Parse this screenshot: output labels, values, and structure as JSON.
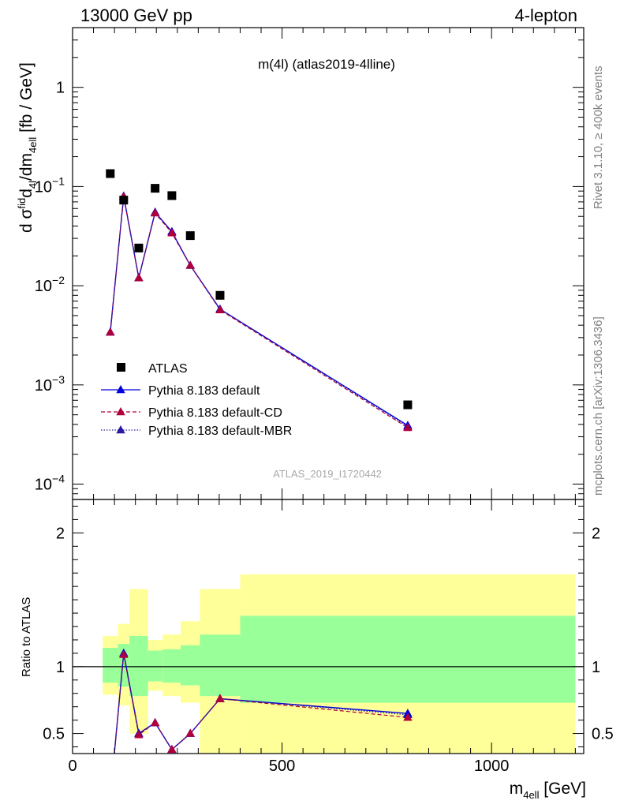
{
  "header": {
    "left": "13000 GeV pp",
    "right": "4-lepton"
  },
  "plot": {
    "title": "m(4l) (atlas2019-4lline)",
    "watermark": "ATLAS_2019_I1720442",
    "side_text_top": "Rivet 3.1.10, ≥ 400k events",
    "side_text_bottom": "mcplots.cern.ch [arXiv:1306.3436]"
  },
  "chart_data": {
    "type": "scatter",
    "x_label": "m_4ell [GeV]",
    "y_label_main": "d σ^fid_4l / dm_4ell [fb / GeV]",
    "y_label_ratio": "Ratio to ATLAS",
    "xlim": [
      0,
      1220
    ],
    "ylim_main": [
      7e-05,
      4.0
    ],
    "y_scale_main": "log",
    "ylim_ratio": [
      0.35,
      2.25
    ],
    "x_ticks": [
      0,
      500,
      1000
    ],
    "y_ticks_main": [
      "1",
      "10^-1",
      "10^-2",
      "10^-3",
      "10^-4"
    ],
    "y_ticks_ratio": [
      "0.5",
      "1",
      "2"
    ],
    "legend": [
      {
        "label": "ATLAS",
        "color": "#000000",
        "marker": "square",
        "line": "none"
      },
      {
        "label": "Pythia 8.183 default",
        "color": "#0000dd",
        "marker": "triangle",
        "line": "solid"
      },
      {
        "label": "Pythia 8.183 default-CD",
        "color": "#b0003a",
        "marker": "triangle",
        "line": "dashed"
      },
      {
        "label": "Pythia 8.183 default-MBR",
        "color": "#2a1aa0",
        "marker": "triangle",
        "line": "dotted"
      }
    ],
    "atlas": {
      "x": [
        90,
        122,
        158,
        197,
        237,
        281,
        352,
        800
      ],
      "y": [
        0.135,
        0.073,
        0.024,
        0.096,
        0.081,
        0.032,
        0.008,
        0.00063
      ]
    },
    "mc_x": [
      90,
      122,
      158,
      197,
      237,
      281,
      352,
      800
    ],
    "series": [
      {
        "name": "Pythia 8.183 default",
        "y": [
          0.0034,
          0.08,
          0.012,
          0.055,
          0.035,
          0.016,
          0.0058,
          0.00039
        ],
        "ratio": [
          0.025,
          1.1,
          0.5,
          0.58,
          0.38,
          0.5,
          0.76,
          0.65
        ]
      },
      {
        "name": "Pythia 8.183 default-CD",
        "y": [
          0.0034,
          0.079,
          0.012,
          0.054,
          0.034,
          0.016,
          0.0057,
          0.00037
        ],
        "ratio": [
          0.025,
          1.09,
          0.49,
          0.58,
          0.38,
          0.5,
          0.76,
          0.62
        ]
      },
      {
        "name": "Pythia 8.183 default-MBR",
        "y": [
          0.0034,
          0.08,
          0.012,
          0.055,
          0.035,
          0.016,
          0.0058,
          0.00038
        ],
        "ratio": [
          0.025,
          1.1,
          0.5,
          0.58,
          0.38,
          0.5,
          0.76,
          0.64
        ]
      }
    ],
    "bands": [
      {
        "x0": 72,
        "x1": 108,
        "g_lo": 0.88,
        "g_hi": 1.14,
        "y_lo": 0.79,
        "y_hi": 1.23
      },
      {
        "x0": 108,
        "x1": 136,
        "g_lo": 0.85,
        "g_hi": 1.17,
        "y_lo": 0.71,
        "y_hi": 1.32
      },
      {
        "x0": 136,
        "x1": 180,
        "g_lo": 0.78,
        "g_hi": 1.23,
        "y_lo": 0.5,
        "y_hi": 1.58
      },
      {
        "x0": 180,
        "x1": 215,
        "g_lo": 0.89,
        "g_hi": 1.12,
        "y_lo": 0.82,
        "y_hi": 1.2
      },
      {
        "x0": 215,
        "x1": 258,
        "g_lo": 0.88,
        "g_hi": 1.13,
        "y_lo": 0.78,
        "y_hi": 1.24
      },
      {
        "x0": 258,
        "x1": 304,
        "g_lo": 0.86,
        "g_hi": 1.16,
        "y_lo": 0.73,
        "y_hi": 1.34
      },
      {
        "x0": 304,
        "x1": 400,
        "g_lo": 0.78,
        "g_hi": 1.24,
        "y_lo": 0.35,
        "y_hi": 1.58
      },
      {
        "x0": 400,
        "x1": 1200,
        "g_lo": 0.73,
        "g_hi": 1.38,
        "y_lo": 0.35,
        "y_hi": 1.69
      }
    ],
    "band_colors": {
      "inner": "#99ff99",
      "outer": "#ffff99"
    }
  }
}
